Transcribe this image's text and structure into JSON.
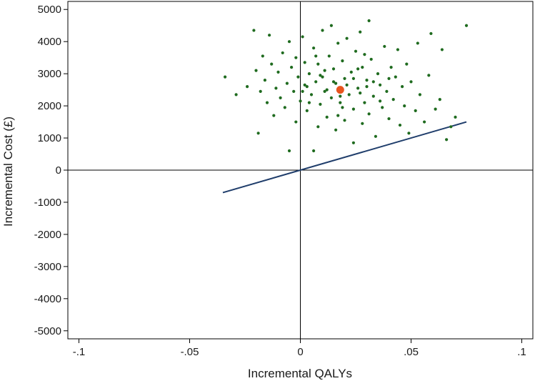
{
  "chart_data": {
    "type": "scatter",
    "title": "",
    "xlabel": "Incremental QALYs",
    "ylabel": "Incremental Cost (£)",
    "xlim": [
      -0.105,
      0.105
    ],
    "ylim": [
      -5250,
      5250
    ],
    "x_ticks": [
      -0.1,
      -0.05,
      0,
      0.05,
      0.1
    ],
    "x_tick_labels": [
      "-.1",
      "-.05",
      "0",
      ".05",
      ".1"
    ],
    "y_ticks": [
      5000,
      4000,
      3000,
      2000,
      1000,
      0,
      -1000,
      -2000,
      -3000,
      -4000,
      -5000
    ],
    "y_tick_labels": [
      "5000",
      "4000",
      "3000",
      "2000",
      "1000",
      "0",
      "-1000",
      "-2000",
      "-3000",
      "-4000",
      "-5000"
    ],
    "grid": false,
    "colors": {
      "simulations": "#1f6b1f",
      "mean": "#e8541e",
      "threshold_line": "#1f3d6b",
      "axes": "#000000"
    },
    "series": [
      {
        "points": [
          [
            -0.034,
            2900
          ],
          [
            -0.029,
            2350
          ],
          [
            -0.024,
            2600
          ],
          [
            -0.021,
            4350
          ],
          [
            -0.02,
            3100
          ],
          [
            -0.019,
            1150
          ],
          [
            -0.018,
            2450
          ],
          [
            -0.017,
            3550
          ],
          [
            -0.016,
            2800
          ],
          [
            -0.015,
            2100
          ],
          [
            -0.014,
            4200
          ],
          [
            -0.013,
            3300
          ],
          [
            -0.012,
            1700
          ],
          [
            -0.011,
            2550
          ],
          [
            -0.01,
            3050
          ],
          [
            -0.009,
            2250
          ],
          [
            -0.008,
            3650
          ],
          [
            -0.007,
            1950
          ],
          [
            -0.006,
            2700
          ],
          [
            -0.005,
            4000
          ],
          [
            -0.005,
            600
          ],
          [
            -0.004,
            3200
          ],
          [
            -0.003,
            2450
          ],
          [
            -0.002,
            1500
          ],
          [
            -0.002,
            3500
          ],
          [
            -0.001,
            2900
          ],
          [
            0.0,
            2150
          ],
          [
            0.001,
            4150
          ],
          [
            0.002,
            3350
          ],
          [
            0.003,
            2600
          ],
          [
            0.003,
            1850
          ],
          [
            0.004,
            3000
          ],
          [
            0.005,
            2350
          ],
          [
            0.006,
            600
          ],
          [
            0.006,
            3800
          ],
          [
            0.007,
            2750
          ],
          [
            0.008,
            1350
          ],
          [
            0.008,
            3300
          ],
          [
            0.009,
            2050
          ],
          [
            0.01,
            4350
          ],
          [
            0.01,
            2900
          ],
          [
            0.011,
            2450
          ],
          [
            0.012,
            1650
          ],
          [
            0.013,
            3550
          ],
          [
            0.014,
            4500
          ],
          [
            0.014,
            2250
          ],
          [
            0.015,
            3150
          ],
          [
            0.016,
            1250
          ],
          [
            0.016,
            2700
          ],
          [
            0.017,
            3950
          ],
          [
            0.018,
            2100
          ],
          [
            0.019,
            3400
          ],
          [
            0.02,
            1550
          ],
          [
            0.02,
            2850
          ],
          [
            0.021,
            4100
          ],
          [
            0.022,
            2350
          ],
          [
            0.023,
            3050
          ],
          [
            0.024,
            850
          ],
          [
            0.024,
            1900
          ],
          [
            0.025,
            3700
          ],
          [
            0.026,
            2550
          ],
          [
            0.027,
            4300
          ],
          [
            0.028,
            1450
          ],
          [
            0.028,
            3200
          ],
          [
            0.029,
            2100
          ],
          [
            0.03,
            2800
          ],
          [
            0.031,
            4650
          ],
          [
            0.031,
            1750
          ],
          [
            0.032,
            3450
          ],
          [
            0.033,
            2300
          ],
          [
            0.034,
            1050
          ],
          [
            0.035,
            3000
          ],
          [
            0.036,
            2650
          ],
          [
            0.037,
            1950
          ],
          [
            0.038,
            3850
          ],
          [
            0.039,
            2450
          ],
          [
            0.04,
            1600
          ],
          [
            0.041,
            3200
          ],
          [
            0.042,
            2200
          ],
          [
            0.043,
            2900
          ],
          [
            0.044,
            3750
          ],
          [
            0.045,
            1400
          ],
          [
            0.046,
            2600
          ],
          [
            0.047,
            2000
          ],
          [
            0.048,
            3300
          ],
          [
            0.049,
            1150
          ],
          [
            0.05,
            2750
          ],
          [
            0.052,
            1850
          ],
          [
            0.053,
            3950
          ],
          [
            0.054,
            2350
          ],
          [
            0.056,
            1500
          ],
          [
            0.058,
            2950
          ],
          [
            0.059,
            4250
          ],
          [
            0.061,
            1900
          ],
          [
            0.063,
            2200
          ],
          [
            0.064,
            3750
          ],
          [
            0.066,
            950
          ],
          [
            0.068,
            1350
          ],
          [
            0.07,
            1650
          ],
          [
            0.075,
            4500
          ],
          [
            0.002,
            2650
          ],
          [
            0.009,
            2950
          ],
          [
            0.012,
            2500
          ],
          [
            0.015,
            2750
          ],
          [
            0.018,
            2300
          ],
          [
            0.021,
            2650
          ],
          [
            0.024,
            2850
          ],
          [
            0.027,
            2400
          ],
          [
            0.03,
            2600
          ],
          [
            0.033,
            2750
          ],
          [
            0.004,
            2100
          ],
          [
            0.011,
            3100
          ],
          [
            0.019,
            1950
          ],
          [
            0.026,
            3150
          ],
          [
            0.036,
            2150
          ],
          [
            0.007,
            3550
          ],
          [
            0.017,
            1700
          ],
          [
            0.029,
            3600
          ],
          [
            0.04,
            2850
          ],
          [
            0.001,
            2450
          ]
        ]
      },
      {
        "points": [
          [
            0.018,
            2500
          ]
        ]
      }
    ],
    "threshold_line": {
      "x": [
        -0.035,
        0.075
      ],
      "y": [
        -700,
        1500
      ]
    }
  }
}
